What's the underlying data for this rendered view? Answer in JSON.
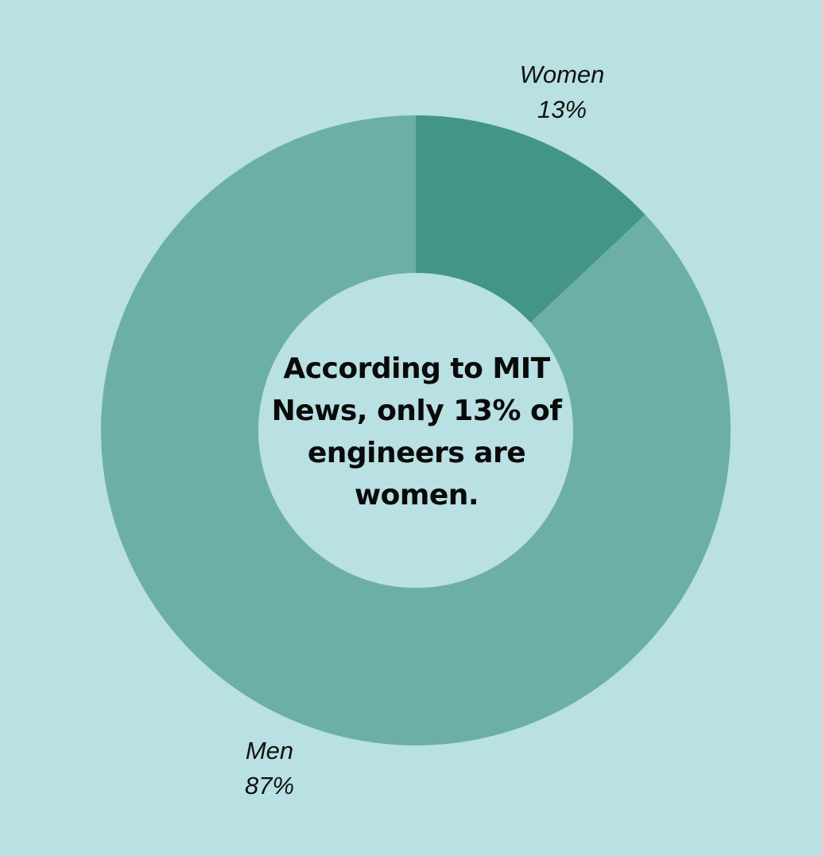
{
  "chart_data": {
    "type": "pie",
    "style": "donut",
    "slices": [
      {
        "label": "Women",
        "value": 13,
        "display": "13%",
        "color": "#43958a"
      },
      {
        "label": "Men",
        "value": 87,
        "display": "87%",
        "color": "#6cafa8"
      }
    ],
    "center_text": "According to MIT News, only 13% of engineers are women.",
    "background_color": "#b9e0e2",
    "legend": "none"
  }
}
